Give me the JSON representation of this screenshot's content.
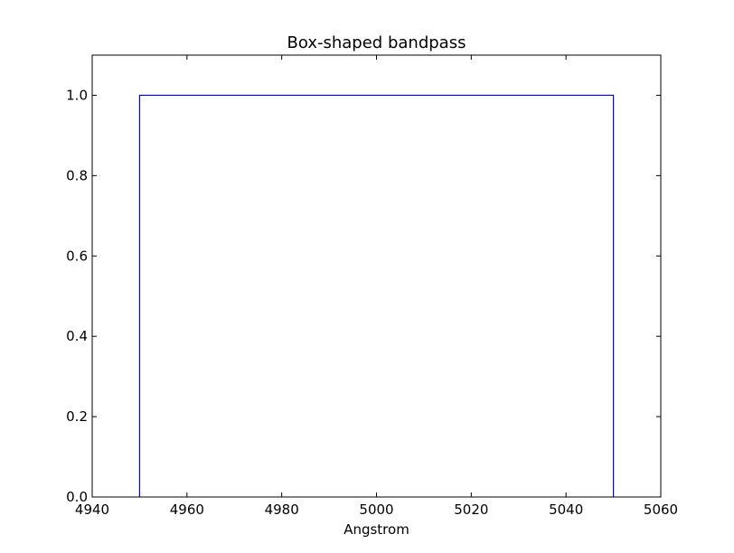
{
  "chart_data": {
    "type": "line",
    "title": "Box-shaped bandpass",
    "xlabel": "Angstrom",
    "ylabel": "",
    "xlim": [
      4940,
      5060
    ],
    "ylim": [
      0,
      1.1
    ],
    "xticks": [
      4940,
      4960,
      4980,
      5000,
      5020,
      5040,
      5060
    ],
    "xtick_labels": [
      "4940",
      "4960",
      "4980",
      "5000",
      "5020",
      "5040",
      "5060"
    ],
    "yticks": [
      0.0,
      0.2,
      0.4,
      0.6,
      0.8,
      1.0
    ],
    "ytick_labels": [
      "0.0",
      "0.2",
      "0.4",
      "0.6",
      "0.8",
      "1.0"
    ],
    "grid": false,
    "series": [
      {
        "color": "#0000ff",
        "x": [
          4950,
          4950,
          5050,
          5050
        ],
        "y": [
          0.0,
          1.0,
          1.0,
          0.0
        ]
      }
    ]
  }
}
